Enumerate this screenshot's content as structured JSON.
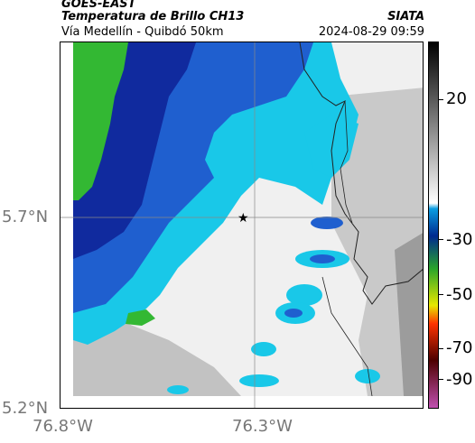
{
  "header": {
    "satellite": "GOES-EAST",
    "product": "Temperatura de Brillo CH13",
    "route": "Vía Medellín - Quibdó 50km",
    "agency": "SIATA",
    "datetime": "2024-08-29 09:59"
  },
  "map": {
    "lat_ticks": [
      "5.7°N",
      "5.2°N"
    ],
    "lon_ticks": [
      "76.8°W",
      "76.3°W"
    ],
    "marker": "star",
    "colors": {
      "green": "#33b833",
      "dark_blue": "#102a9e",
      "blue": "#1f5fcf",
      "cyan": "#19c8e8",
      "light_gray": "#efefef",
      "gray": "#bdbdbd",
      "dark_gray": "#9a9a9a"
    }
  },
  "colorbar": {
    "labels": [
      "20",
      "-30",
      "-50",
      "-70",
      "-90"
    ],
    "colors": [
      "#000000",
      "#ffffff",
      "#0b9ee2",
      "#002a8f",
      "#2aa52a",
      "#e8e800",
      "#ff3300",
      "#4d0000",
      "#c050b0"
    ]
  }
}
